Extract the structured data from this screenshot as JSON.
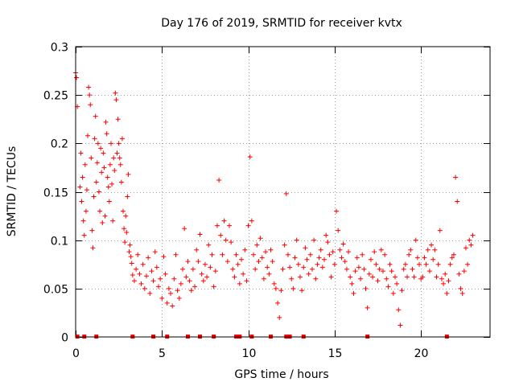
{
  "chart_data": {
    "type": "scatter",
    "title": "Day 176 of 2019, SRMTID for receiver kvtx",
    "xlabel": "GPS time / hours",
    "ylabel": "SRMTID / TECUs",
    "xlim": [
      0,
      24
    ],
    "ylim": [
      0,
      0.3
    ],
    "x_ticks": [
      0,
      5,
      10,
      15,
      20
    ],
    "x_tick_labels": [
      "0",
      "5",
      "10",
      "15",
      "20"
    ],
    "y_ticks": [
      0,
      0.05,
      0.1,
      0.15,
      0.2,
      0.25,
      0.3
    ],
    "y_tick_labels": [
      "0",
      "0.05",
      "0.1",
      "0.15",
      "0.2",
      "0.25",
      "0.3"
    ],
    "grid": true,
    "marker": "plus",
    "color": "#ff0000",
    "series": [
      {
        "name": "SRMTID",
        "points": [
          [
            0.0,
            0.273
          ],
          [
            0.05,
            0.268
          ],
          [
            0.1,
            0.238
          ],
          [
            0.25,
            0.155
          ],
          [
            0.3,
            0.19
          ],
          [
            0.35,
            0.14
          ],
          [
            0.4,
            0.165
          ],
          [
            0.45,
            0.12
          ],
          [
            0.5,
            0.105
          ],
          [
            0.55,
            0.178
          ],
          [
            0.6,
            0.13
          ],
          [
            0.65,
            0.152
          ],
          [
            0.7,
            0.208
          ],
          [
            0.75,
            0.258
          ],
          [
            0.8,
            0.25
          ],
          [
            0.85,
            0.24
          ],
          [
            0.9,
            0.185
          ],
          [
            0.95,
            0.11
          ],
          [
            1.0,
            0.092
          ],
          [
            1.05,
            0.145
          ],
          [
            1.1,
            0.205
          ],
          [
            1.15,
            0.228
          ],
          [
            1.2,
            0.16
          ],
          [
            1.25,
            0.18
          ],
          [
            1.3,
            0.2
          ],
          [
            1.35,
            0.15
          ],
          [
            1.4,
            0.13
          ],
          [
            1.45,
            0.195
          ],
          [
            1.5,
            0.17
          ],
          [
            1.55,
            0.118
          ],
          [
            1.6,
            0.19
          ],
          [
            1.65,
            0.175
          ],
          [
            1.7,
            0.125
          ],
          [
            1.75,
            0.222
          ],
          [
            1.8,
            0.21
          ],
          [
            1.85,
            0.165
          ],
          [
            1.9,
            0.155
          ],
          [
            1.95,
            0.14
          ],
          [
            2.0,
            0.178
          ],
          [
            2.05,
            0.2
          ],
          [
            2.1,
            0.158
          ],
          [
            2.15,
            0.12
          ],
          [
            2.2,
            0.185
          ],
          [
            2.25,
            0.172
          ],
          [
            2.3,
            0.252
          ],
          [
            2.35,
            0.245
          ],
          [
            2.4,
            0.19
          ],
          [
            2.45,
            0.225
          ],
          [
            2.5,
            0.2
          ],
          [
            2.55,
            0.185
          ],
          [
            2.6,
            0.178
          ],
          [
            2.65,
            0.16
          ],
          [
            2.7,
            0.205
          ],
          [
            2.75,
            0.13
          ],
          [
            2.8,
            0.112
          ],
          [
            2.85,
            0.098
          ],
          [
            2.9,
            0.125
          ],
          [
            2.95,
            0.108
          ],
          [
            3.0,
            0.145
          ],
          [
            3.05,
            0.168
          ],
          [
            3.1,
            0.088
          ],
          [
            3.15,
            0.095
          ],
          [
            3.2,
            0.083
          ],
          [
            3.25,
            0.076
          ],
          [
            3.3,
            0.064
          ],
          [
            3.4,
            0.058
          ],
          [
            3.5,
            0.07
          ],
          [
            3.6,
            0.085
          ],
          [
            3.7,
            0.065
          ],
          [
            3.8,
            0.055
          ],
          [
            3.9,
            0.075
          ],
          [
            4.0,
            0.05
          ],
          [
            4.1,
            0.063
          ],
          [
            4.2,
            0.082
          ],
          [
            4.3,
            0.045
          ],
          [
            4.4,
            0.068
          ],
          [
            4.5,
            0.058
          ],
          [
            4.6,
            0.088
          ],
          [
            4.7,
            0.072
          ],
          [
            4.8,
            0.052
          ],
          [
            4.9,
            0.06
          ],
          [
            5.0,
            0.04
          ],
          [
            5.1,
            0.083
          ],
          [
            5.2,
            0.065
          ],
          [
            5.3,
            0.035
          ],
          [
            5.4,
            0.05
          ],
          [
            5.5,
            0.045
          ],
          [
            5.6,
            0.032
          ],
          [
            5.7,
            0.06
          ],
          [
            5.8,
            0.085
          ],
          [
            5.9,
            0.048
          ],
          [
            6.0,
            0.04
          ],
          [
            6.1,
            0.055
          ],
          [
            6.2,
            0.07
          ],
          [
            6.3,
            0.112
          ],
          [
            6.4,
            0.062
          ],
          [
            6.5,
            0.078
          ],
          [
            6.6,
            0.058
          ],
          [
            6.7,
            0.048
          ],
          [
            6.8,
            0.07
          ],
          [
            6.9,
            0.052
          ],
          [
            7.0,
            0.09
          ],
          [
            7.1,
            0.078
          ],
          [
            7.2,
            0.106
          ],
          [
            7.3,
            0.065
          ],
          [
            7.4,
            0.058
          ],
          [
            7.5,
            0.075
          ],
          [
            7.6,
            0.062
          ],
          [
            7.7,
            0.095
          ],
          [
            7.8,
            0.072
          ],
          [
            7.9,
            0.085
          ],
          [
            8.0,
            0.052
          ],
          [
            8.1,
            0.068
          ],
          [
            8.2,
            0.115
          ],
          [
            8.3,
            0.162
          ],
          [
            8.4,
            0.105
          ],
          [
            8.5,
            0.085
          ],
          [
            8.6,
            0.12
          ],
          [
            8.7,
            0.1
          ],
          [
            8.8,
            0.078
          ],
          [
            8.9,
            0.115
          ],
          [
            9.0,
            0.098
          ],
          [
            9.1,
            0.07
          ],
          [
            9.2,
            0.062
          ],
          [
            9.3,
            0.085
          ],
          [
            9.4,
            0.075
          ],
          [
            9.5,
            0.055
          ],
          [
            9.6,
            0.08
          ],
          [
            9.7,
            0.065
          ],
          [
            9.8,
            0.09
          ],
          [
            9.9,
            0.058
          ],
          [
            10.0,
            0.115
          ],
          [
            10.1,
            0.186
          ],
          [
            10.2,
            0.12
          ],
          [
            10.3,
            0.085
          ],
          [
            10.4,
            0.07
          ],
          [
            10.5,
            0.095
          ],
          [
            10.6,
            0.078
          ],
          [
            10.7,
            0.102
          ],
          [
            10.8,
            0.082
          ],
          [
            10.9,
            0.06
          ],
          [
            11.0,
            0.088
          ],
          [
            11.1,
            0.072
          ],
          [
            11.2,
            0.065
          ],
          [
            11.3,
            0.09
          ],
          [
            11.4,
            0.078
          ],
          [
            11.5,
            0.055
          ],
          [
            11.6,
            0.05
          ],
          [
            11.7,
            0.035
          ],
          [
            11.8,
            0.02
          ],
          [
            11.9,
            0.048
          ],
          [
            12.0,
            0.07
          ],
          [
            12.1,
            0.095
          ],
          [
            12.2,
            0.148
          ],
          [
            12.3,
            0.085
          ],
          [
            12.4,
            0.072
          ],
          [
            12.5,
            0.06
          ],
          [
            12.6,
            0.05
          ],
          [
            12.7,
            0.082
          ],
          [
            12.8,
            0.1
          ],
          [
            12.9,
            0.075
          ],
          [
            13.0,
            0.062
          ],
          [
            13.1,
            0.048
          ],
          [
            13.2,
            0.072
          ],
          [
            13.3,
            0.092
          ],
          [
            13.4,
            0.08
          ],
          [
            13.5,
            0.065
          ],
          [
            13.6,
            0.085
          ],
          [
            13.7,
            0.07
          ],
          [
            13.8,
            0.1
          ],
          [
            13.9,
            0.06
          ],
          [
            14.0,
            0.075
          ],
          [
            14.1,
            0.082
          ],
          [
            14.2,
            0.09
          ],
          [
            14.3,
            0.072
          ],
          [
            14.4,
            0.08
          ],
          [
            14.5,
            0.105
          ],
          [
            14.6,
            0.098
          ],
          [
            14.7,
            0.085
          ],
          [
            14.8,
            0.062
          ],
          [
            14.9,
            0.088
          ],
          [
            15.0,
            0.075
          ],
          [
            15.1,
            0.13
          ],
          [
            15.2,
            0.11
          ],
          [
            15.3,
            0.09
          ],
          [
            15.4,
            0.082
          ],
          [
            15.5,
            0.096
          ],
          [
            15.6,
            0.078
          ],
          [
            15.7,
            0.07
          ],
          [
            15.8,
            0.088
          ],
          [
            15.9,
            0.062
          ],
          [
            16.0,
            0.055
          ],
          [
            16.1,
            0.045
          ],
          [
            16.2,
            0.068
          ],
          [
            16.3,
            0.082
          ],
          [
            16.4,
            0.072
          ],
          [
            16.5,
            0.06
          ],
          [
            16.6,
            0.085
          ],
          [
            16.7,
            0.07
          ],
          [
            16.8,
            0.05
          ],
          [
            16.9,
            0.03
          ],
          [
            17.0,
            0.065
          ],
          [
            17.1,
            0.08
          ],
          [
            17.2,
            0.062
          ],
          [
            17.3,
            0.088
          ],
          [
            17.4,
            0.075
          ],
          [
            17.5,
            0.058
          ],
          [
            17.6,
            0.07
          ],
          [
            17.7,
            0.09
          ],
          [
            17.8,
            0.068
          ],
          [
            17.9,
            0.085
          ],
          [
            18.0,
            0.06
          ],
          [
            18.1,
            0.052
          ],
          [
            18.2,
            0.075
          ],
          [
            18.3,
            0.068
          ],
          [
            18.4,
            0.045
          ],
          [
            18.5,
            0.062
          ],
          [
            18.6,
            0.055
          ],
          [
            18.7,
            0.028
          ],
          [
            18.8,
            0.012
          ],
          [
            18.9,
            0.048
          ],
          [
            19.0,
            0.07
          ],
          [
            19.1,
            0.075
          ],
          [
            19.2,
            0.062
          ],
          [
            19.3,
            0.085
          ],
          [
            19.4,
            0.09
          ],
          [
            19.5,
            0.07
          ],
          [
            19.6,
            0.062
          ],
          [
            19.7,
            0.1
          ],
          [
            19.8,
            0.082
          ],
          [
            19.9,
            0.075
          ],
          [
            20.0,
            0.06
          ],
          [
            20.1,
            0.062
          ],
          [
            20.2,
            0.082
          ],
          [
            20.3,
            0.075
          ],
          [
            20.4,
            0.09
          ],
          [
            20.5,
            0.068
          ],
          [
            20.6,
            0.095
          ],
          [
            20.7,
            0.08
          ],
          [
            20.8,
            0.09
          ],
          [
            20.9,
            0.062
          ],
          [
            21.0,
            0.075
          ],
          [
            21.1,
            0.11
          ],
          [
            21.2,
            0.06
          ],
          [
            21.3,
            0.055
          ],
          [
            21.4,
            0.065
          ],
          [
            21.5,
            0.045
          ],
          [
            21.6,
            0.058
          ],
          [
            21.7,
            0.075
          ],
          [
            21.8,
            0.082
          ],
          [
            21.9,
            0.085
          ],
          [
            22.0,
            0.165
          ],
          [
            22.1,
            0.14
          ],
          [
            22.2,
            0.065
          ],
          [
            22.3,
            0.05
          ],
          [
            22.4,
            0.045
          ],
          [
            22.5,
            0.068
          ],
          [
            22.6,
            0.092
          ],
          [
            22.7,
            0.075
          ],
          [
            22.8,
            0.1
          ],
          [
            22.9,
            0.095
          ],
          [
            23.0,
            0.105
          ]
        ]
      }
    ],
    "data_gap_markers_x": [
      0.1,
      0.5,
      1.2,
      3.3,
      4.5,
      5.3,
      6.5,
      7.2,
      8.0,
      9.3,
      9.5,
      10.2,
      11.3,
      12.2,
      12.4,
      13.2,
      16.9,
      21.5
    ]
  }
}
